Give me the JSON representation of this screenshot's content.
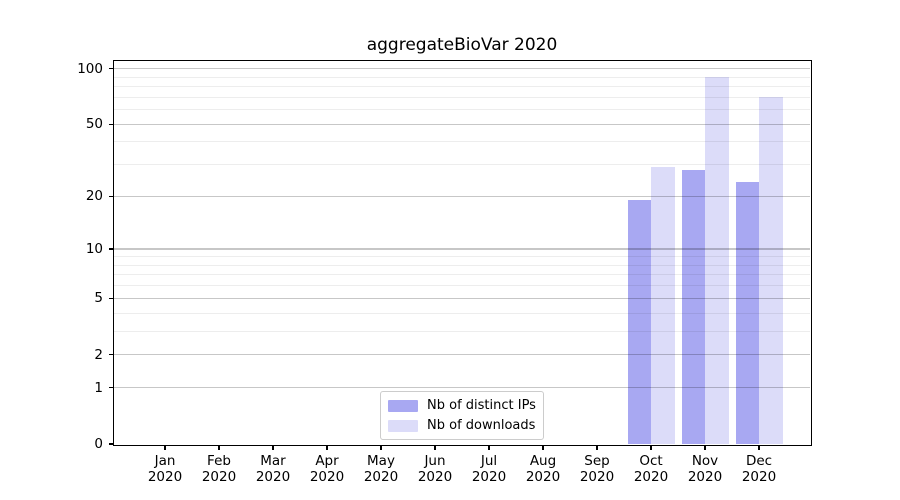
{
  "chart_data": {
    "type": "bar",
    "title": "aggregateBioVar 2020",
    "categories": [
      "Jan",
      "Feb",
      "Mar",
      "Apr",
      "May",
      "Jun",
      "Jul",
      "Aug",
      "Sep",
      "Oct",
      "Nov",
      "Dec"
    ],
    "category_year": "2020",
    "series": [
      {
        "name": "Nb of distinct IPs",
        "color": "#a8a8f2",
        "values": [
          0,
          0,
          0,
          0,
          0,
          0,
          0,
          0,
          0,
          19,
          28,
          24
        ]
      },
      {
        "name": "Nb of downloads",
        "color": "#dcdcf9",
        "values": [
          0,
          0,
          0,
          0,
          0,
          0,
          0,
          0,
          0,
          29,
          90,
          70
        ]
      }
    ],
    "xlabel": "",
    "ylabel": "",
    "yscale": "log1p",
    "ylim": [
      0,
      110
    ],
    "yticks": [
      0,
      1,
      2,
      5,
      10,
      20,
      50,
      100
    ],
    "minor_gridlines": [
      3,
      4,
      6,
      7,
      8,
      9,
      30,
      40,
      60,
      70,
      80,
      90
    ],
    "grid": true,
    "legend_position": "lower center"
  }
}
